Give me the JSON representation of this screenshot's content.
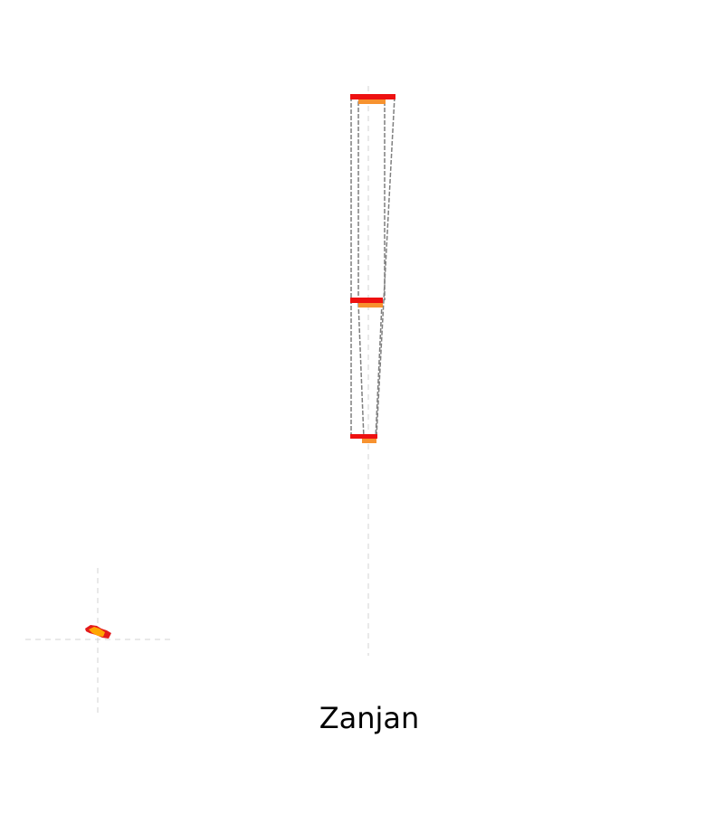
{
  "title": "Zanjan",
  "colors": {
    "background": "#ffffff",
    "outer_band": "#ee1111",
    "inner_band": "#f7922f",
    "outline": "#7f7f7f",
    "guide_line": "#d3d3d3",
    "locator_outer": "#e31a1c",
    "locator_inner": "#ffa500"
  }
}
